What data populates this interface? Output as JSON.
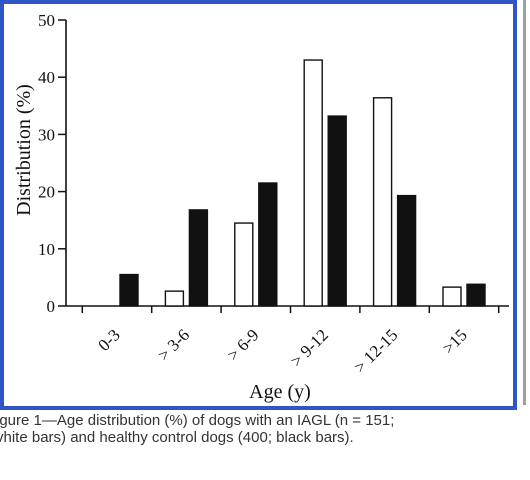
{
  "chart_data": {
    "type": "bar",
    "categories": [
      "0-3",
      "> 3-6",
      "> 6-9",
      "> 9-12",
      "> 12-15",
      ">15"
    ],
    "series": [
      {
        "values": [
          0,
          2.6,
          14.5,
          43,
          36.4,
          3.3
        ],
        "color": "#ffffff"
      },
      {
        "values": [
          5.5,
          16.8,
          21.5,
          33.2,
          19.3,
          3.8
        ],
        "color": "#111111"
      }
    ],
    "xlabel": "Age (y)",
    "ylabel": "Distribution (%)",
    "ylim": [
      0,
      50
    ],
    "yticks": [
      0,
      10,
      20,
      30,
      40,
      50
    ],
    "grid": false
  },
  "caption": {
    "line1": "igure 1—Age distribution (%) of dogs with an IAGL (n = 151;",
    "line2": "vhite bars) and healthy control dogs (400; black bars)."
  },
  "colors": {
    "frame_border": "#2f55c7",
    "bar_outline": "#111111"
  }
}
